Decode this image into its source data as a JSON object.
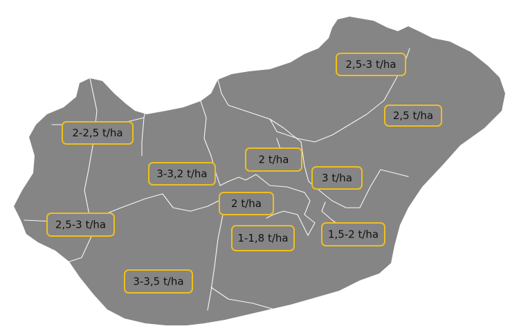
{
  "colors": {
    "country_fill": "#858585",
    "border": "#ffffff",
    "label_outline": "#f0bf1e",
    "label_text": "#111111"
  },
  "regions": [
    {
      "id": "north-east",
      "label": "2,5-3 t/ha"
    },
    {
      "id": "east",
      "label": "2,5 t/ha"
    },
    {
      "id": "north-west",
      "label": "2-2,5 t/ha"
    },
    {
      "id": "central-north",
      "label": "2 t/ha"
    },
    {
      "id": "central-west",
      "label": "3-3,2 t/ha"
    },
    {
      "id": "central-east",
      "label": "3 t/ha"
    },
    {
      "id": "central",
      "label": "2 t/ha"
    },
    {
      "id": "west",
      "label": "2,5-3 t/ha"
    },
    {
      "id": "south-central",
      "label": "1-1,8 t/ha"
    },
    {
      "id": "south-east",
      "label": "1,5-2 t/ha"
    },
    {
      "id": "south-west",
      "label": "3-3,5 t/ha"
    }
  ]
}
